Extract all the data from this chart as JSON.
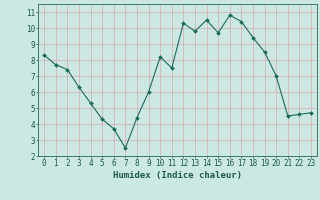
{
  "x": [
    0,
    1,
    2,
    3,
    4,
    5,
    6,
    7,
    8,
    9,
    10,
    11,
    12,
    13,
    14,
    15,
    16,
    17,
    18,
    19,
    20,
    21,
    22,
    23
  ],
  "y": [
    8.3,
    7.7,
    7.4,
    6.3,
    5.3,
    4.3,
    3.7,
    2.5,
    4.4,
    6.0,
    8.2,
    7.5,
    10.3,
    9.8,
    10.5,
    9.7,
    10.8,
    10.4,
    9.4,
    8.5,
    7.0,
    4.5,
    4.6,
    4.7
  ],
  "xlabel": "Humidex (Indice chaleur)",
  "xlim": [
    -0.5,
    23.5
  ],
  "ylim": [
    2,
    11.5
  ],
  "yticks": [
    2,
    3,
    4,
    5,
    6,
    7,
    8,
    9,
    10,
    11
  ],
  "xticks": [
    0,
    1,
    2,
    3,
    4,
    5,
    6,
    7,
    8,
    9,
    10,
    11,
    12,
    13,
    14,
    15,
    16,
    17,
    18,
    19,
    20,
    21,
    22,
    23
  ],
  "bg_color": "#cce8e4",
  "grid_color": "#d9a8a8",
  "line_color": "#1a6b5a",
  "marker_color": "#1a6b5a",
  "axis_color": "#3a7a6a",
  "xlabel_color": "#1a5a4a",
  "tick_color": "#1a5a4a",
  "font": "monospace"
}
